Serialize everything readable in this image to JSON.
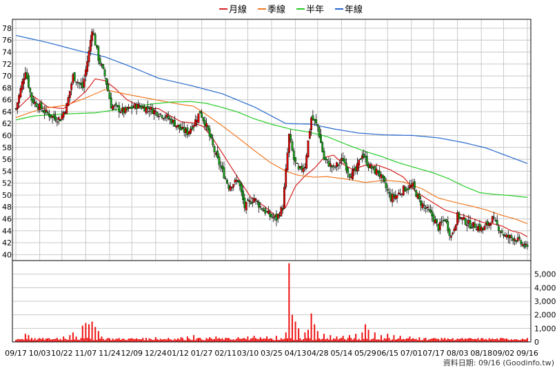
{
  "colors": {
    "up_candle": "#e00000",
    "down_candle": "#13a013",
    "monthly_ma": "#d62020",
    "quarterly_ma": "#f07820",
    "half_year_ma": "#22cc22",
    "yearly_ma": "#2266cc",
    "volume": "#ee1111",
    "grid": "#c8c8c8"
  },
  "legend": [
    {
      "label": "月線",
      "color": "#d62020"
    },
    {
      "label": "季線",
      "color": "#f07820"
    },
    {
      "label": "半年",
      "color": "#22cc22"
    },
    {
      "label": "年線",
      "color": "#2266cc"
    }
  ],
  "footer": {
    "source": "資料日期: 09/16  (Goodinfo.tw)"
  },
  "chart_data": [
    {
      "type": "candlestick",
      "title": "",
      "ylim": [
        39,
        79.5
      ],
      "ytick_labels": [
        "40",
        "42",
        "44",
        "46",
        "48",
        "50",
        "52",
        "54",
        "56",
        "58",
        "60",
        "62",
        "64",
        "66",
        "68",
        "70",
        "72",
        "74",
        "76",
        "78"
      ],
      "grid": true,
      "legend_position": "top-center",
      "note": "approximate daily closing path (one value per trading day)",
      "price_keypoints": [
        [
          0,
          64.5
        ],
        [
          6,
          71
        ],
        [
          10,
          66
        ],
        [
          18,
          64
        ],
        [
          24,
          63
        ],
        [
          28,
          62.8
        ],
        [
          32,
          65
        ],
        [
          36,
          70
        ],
        [
          42,
          68
        ],
        [
          46,
          74
        ],
        [
          48,
          78
        ],
        [
          52,
          73
        ],
        [
          56,
          70
        ],
        [
          60,
          65
        ],
        [
          68,
          64
        ],
        [
          76,
          65
        ],
        [
          84,
          64.5
        ],
        [
          92,
          63.5
        ],
        [
          98,
          62.5
        ],
        [
          104,
          61
        ],
        [
          108,
          60.5
        ],
        [
          112,
          62
        ],
        [
          116,
          64
        ],
        [
          120,
          61.5
        ],
        [
          126,
          56.5
        ],
        [
          130,
          54
        ],
        [
          134,
          51.5
        ],
        [
          140,
          52.5
        ],
        [
          144,
          48
        ],
        [
          150,
          49.5
        ],
        [
          154,
          48
        ],
        [
          160,
          46.5
        ],
        [
          164,
          46
        ],
        [
          168,
          48
        ],
        [
          170,
          54
        ],
        [
          172,
          60
        ],
        [
          175,
          56
        ],
        [
          178,
          54
        ],
        [
          182,
          55
        ],
        [
          186,
          63
        ],
        [
          190,
          61.5
        ],
        [
          194,
          56
        ],
        [
          200,
          54.5
        ],
        [
          206,
          56
        ],
        [
          210,
          53.5
        ],
        [
          214,
          54
        ],
        [
          218,
          57
        ],
        [
          222,
          55
        ],
        [
          226,
          54
        ],
        [
          228,
          54
        ],
        [
          236,
          49.5
        ],
        [
          240,
          50
        ],
        [
          244,
          51
        ],
        [
          250,
          51.5
        ],
        [
          254,
          49
        ],
        [
          262,
          46.5
        ],
        [
          266,
          44.5
        ],
        [
          270,
          46
        ],
        [
          274,
          43
        ],
        [
          278,
          46.5
        ],
        [
          286,
          45
        ],
        [
          290,
          44.8
        ],
        [
          294,
          44.2
        ],
        [
          300,
          46
        ],
        [
          304,
          44.5
        ],
        [
          308,
          43
        ],
        [
          314,
          42.8
        ],
        [
          322,
          41
        ]
      ],
      "moving_averages": [
        {
          "name": "月線",
          "points": [
            [
              0,
              64.2
            ],
            [
              10,
              66.8
            ],
            [
              20,
              64.8
            ],
            [
              30,
              64.5
            ],
            [
              38,
              66
            ],
            [
              44,
              67.4
            ],
            [
              50,
              69.5
            ],
            [
              56,
              69.2
            ],
            [
              62,
              68
            ],
            [
              70,
              66
            ],
            [
              80,
              64.6
            ],
            [
              90,
              64.5
            ],
            [
              96,
              63.5
            ],
            [
              104,
              62.3
            ],
            [
              112,
              62.1
            ],
            [
              118,
              61.5
            ],
            [
              124,
              59.5
            ],
            [
              130,
              57
            ],
            [
              136,
              54.5
            ],
            [
              142,
              52
            ],
            [
              148,
              49.6
            ],
            [
              156,
              48.2
            ],
            [
              164,
              46.4
            ],
            [
              170,
              48
            ],
            [
              176,
              51.5
            ],
            [
              182,
              53.2
            ],
            [
              188,
              54.5
            ],
            [
              194,
              56.3
            ],
            [
              200,
              56.7
            ],
            [
              206,
              55.2
            ],
            [
              212,
              54.3
            ],
            [
              220,
              55
            ],
            [
              228,
              55
            ],
            [
              236,
              54.2
            ],
            [
              244,
              53
            ],
            [
              252,
              50.5
            ],
            [
              258,
              49.5
            ],
            [
              264,
              48.5
            ],
            [
              270,
              47.5
            ],
            [
              276,
              47
            ],
            [
              282,
              46.6
            ],
            [
              288,
              46
            ],
            [
              294,
              45.4
            ],
            [
              300,
              45.2
            ],
            [
              306,
              44.8
            ],
            [
              312,
              44
            ],
            [
              318,
              43.6
            ],
            [
              322,
              43
            ]
          ]
        },
        {
          "name": "季線",
          "points": [
            [
              0,
              63
            ],
            [
              16,
              64.5
            ],
            [
              32,
              65.1
            ],
            [
              44,
              66.3
            ],
            [
              56,
              67.7
            ],
            [
              68,
              67
            ],
            [
              80,
              66.4
            ],
            [
              92,
              65.8
            ],
            [
              104,
              65.2
            ],
            [
              112,
              64.9
            ],
            [
              120,
              63.5
            ],
            [
              130,
              61.6
            ],
            [
              140,
              59.6
            ],
            [
              150,
              57.5
            ],
            [
              160,
              55.5
            ],
            [
              170,
              54
            ],
            [
              178,
              53.3
            ],
            [
              188,
              53
            ],
            [
              196,
              53.1
            ],
            [
              210,
              52.6
            ],
            [
              220,
              52.1
            ],
            [
              232,
              52.5
            ],
            [
              244,
              52.2
            ],
            [
              256,
              51
            ],
            [
              266,
              49.5
            ],
            [
              276,
              48.8
            ],
            [
              286,
              48.2
            ],
            [
              296,
              47.5
            ],
            [
              306,
              46.6
            ],
            [
              314,
              46
            ],
            [
              322,
              45.2
            ]
          ]
        },
        {
          "name": "半年",
          "points": [
            [
              0,
              62.6
            ],
            [
              12,
              63.3
            ],
            [
              30,
              63.6
            ],
            [
              50,
              63.8
            ],
            [
              70,
              64.6
            ],
            [
              86,
              65.3
            ],
            [
              98,
              65.6
            ],
            [
              110,
              65.7
            ],
            [
              120,
              65.4
            ],
            [
              130,
              64.7
            ],
            [
              140,
              63.9
            ],
            [
              150,
              62.8
            ],
            [
              162,
              61.8
            ],
            [
              174,
              61
            ],
            [
              184,
              60.6
            ],
            [
              196,
              59.8
            ],
            [
              208,
              58.5
            ],
            [
              220,
              57.3
            ],
            [
              230,
              56.5
            ],
            [
              240,
              55.5
            ],
            [
              250,
              54.7
            ],
            [
              262,
              53.8
            ],
            [
              272,
              52.8
            ],
            [
              282,
              51.5
            ],
            [
              292,
              50.4
            ],
            [
              302,
              50.1
            ],
            [
              312,
              49.9
            ],
            [
              322,
              49.6
            ]
          ]
        },
        {
          "name": "年線",
          "points": [
            [
              0,
              76.8
            ],
            [
              20,
              75.6
            ],
            [
              40,
              74.2
            ],
            [
              56,
              73.2
            ],
            [
              70,
              71.8
            ],
            [
              90,
              69.6
            ],
            [
              110,
              68.4
            ],
            [
              130,
              67
            ],
            [
              150,
              64.8
            ],
            [
              170,
              62
            ],
            [
              186,
              61.9
            ],
            [
              200,
              61.1
            ],
            [
              216,
              60.4
            ],
            [
              232,
              60.1
            ],
            [
              250,
              60
            ],
            [
              266,
              59.6
            ],
            [
              282,
              58.8
            ],
            [
              296,
              57.9
            ],
            [
              306,
              56.9
            ],
            [
              314,
              56.1
            ],
            [
              322,
              55.3
            ]
          ]
        }
      ]
    },
    {
      "type": "bar",
      "title": "",
      "ylim": [
        0,
        6000
      ],
      "ytick_labels": [
        "0",
        "1,000",
        "2,000",
        "3,000",
        "4,000",
        "5,000"
      ],
      "xtick_labels": [
        "09/17",
        "10/03",
        "10/22",
        "11/07",
        "11/24",
        "12/09",
        "12/24",
        "01/12",
        "01/27",
        "02/11",
        "03/10",
        "03/25",
        "04/13",
        "04/28",
        "05/14",
        "05/29",
        "06/15",
        "07/01",
        "07/17",
        "08/03",
        "08/18",
        "09/02",
        "09/16"
      ],
      "volume_spikes": [
        [
          6,
          600
        ],
        [
          8,
          500
        ],
        [
          10,
          300
        ],
        [
          26,
          300
        ],
        [
          30,
          400
        ],
        [
          34,
          500
        ],
        [
          36,
          700
        ],
        [
          38,
          400
        ],
        [
          42,
          1200
        ],
        [
          44,
          1400
        ],
        [
          46,
          1300
        ],
        [
          48,
          1500
        ],
        [
          50,
          1100
        ],
        [
          52,
          800
        ],
        [
          54,
          400
        ],
        [
          58,
          300
        ],
        [
          72,
          250
        ],
        [
          80,
          300
        ],
        [
          88,
          350
        ],
        [
          96,
          300
        ],
        [
          104,
          350
        ],
        [
          108,
          400
        ],
        [
          112,
          500
        ],
        [
          116,
          300
        ],
        [
          122,
          350
        ],
        [
          126,
          400
        ],
        [
          132,
          300
        ],
        [
          140,
          350
        ],
        [
          146,
          400
        ],
        [
          150,
          450
        ],
        [
          154,
          350
        ],
        [
          158,
          400
        ],
        [
          164,
          450
        ],
        [
          170,
          700
        ],
        [
          172,
          5800
        ],
        [
          174,
          2000
        ],
        [
          176,
          1500
        ],
        [
          178,
          1000
        ],
        [
          182,
          700
        ],
        [
          184,
          900
        ],
        [
          186,
          2100
        ],
        [
          188,
          1300
        ],
        [
          190,
          800
        ],
        [
          194,
          600
        ],
        [
          198,
          500
        ],
        [
          202,
          400
        ],
        [
          206,
          450
        ],
        [
          210,
          500
        ],
        [
          214,
          600
        ],
        [
          218,
          700
        ],
        [
          220,
          1300
        ],
        [
          222,
          900
        ],
        [
          226,
          700
        ],
        [
          230,
          500
        ],
        [
          234,
          600
        ],
        [
          238,
          500
        ],
        [
          242,
          450
        ],
        [
          248,
          400
        ],
        [
          254,
          350
        ],
        [
          258,
          300
        ],
        [
          264,
          280
        ],
        [
          268,
          300
        ],
        [
          272,
          260
        ],
        [
          278,
          250
        ],
        [
          284,
          220
        ],
        [
          290,
          200
        ],
        [
          296,
          220
        ],
        [
          302,
          200
        ],
        [
          308,
          220
        ],
        [
          314,
          200
        ],
        [
          320,
          180
        ]
      ]
    }
  ]
}
